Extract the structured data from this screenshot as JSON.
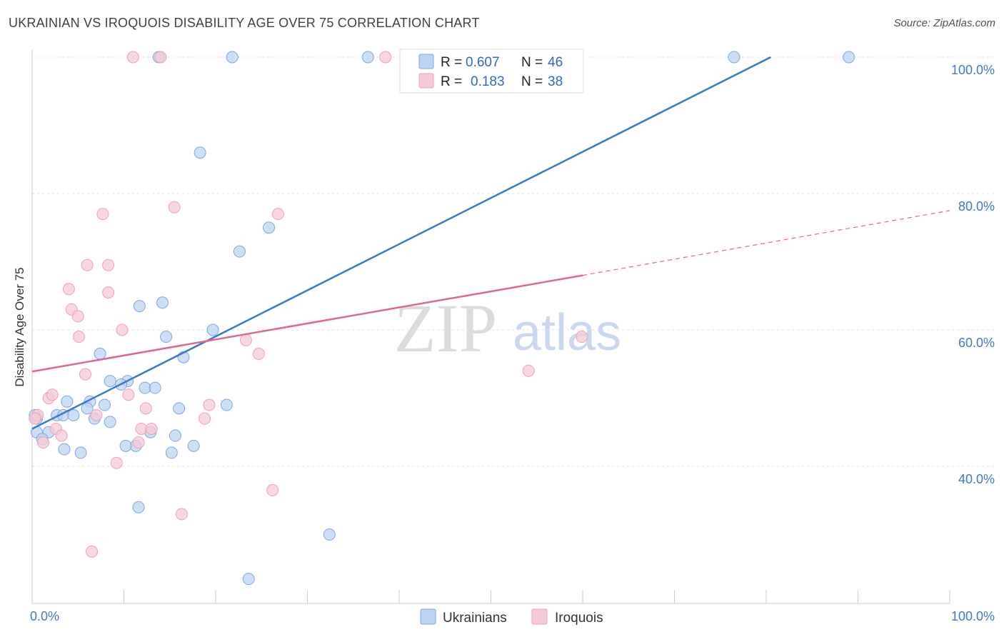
{
  "header": {
    "title": "UKRAINIAN VS IROQUOIS DISABILITY AGE OVER 75 CORRELATION CHART",
    "source": "Source: ZipAtlas.com"
  },
  "watermark": {
    "zip": "ZIP",
    "atlas": "atlas"
  },
  "chart_data": {
    "type": "scatter",
    "title": "UKRAINIAN VS IROQUOIS DISABILITY AGE OVER 75 CORRELATION CHART",
    "xlabel": "",
    "ylabel": "Disability Age Over 75",
    "xlim": [
      0,
      100
    ],
    "ylim": [
      20,
      102
    ],
    "x_tick_labels": [
      "0.0%",
      "100.0%"
    ],
    "y_ticks": [
      {
        "value": 40,
        "label": "40.0%"
      },
      {
        "value": 60,
        "label": "60.0%"
      },
      {
        "value": 80,
        "label": "80.0%"
      },
      {
        "value": 100,
        "label": "100.0%"
      }
    ],
    "legend": [
      {
        "name": "Ukrainians",
        "r_label": "R =",
        "r": "0.607",
        "n_label": "N =",
        "n": "46",
        "color": "#9dbfe9"
      },
      {
        "name": "Iroquois",
        "r_label": "R =",
        "r": "0.183",
        "n_label": "N =",
        "n": "38",
        "color": "#f2a9c0"
      }
    ],
    "series": [
      {
        "name": "Ukrainians",
        "fill": "#bcd4f2",
        "stroke": "#7ea7de",
        "trend": {
          "x0": 0,
          "y0": 45.5,
          "x1": 80.5,
          "y1": 100,
          "color": "#3a78cc",
          "dashed_to": null
        },
        "points": [
          [
            13.8,
            100
          ],
          [
            21.8,
            100
          ],
          [
            36.6,
            100
          ],
          [
            76.5,
            100
          ],
          [
            89.0,
            100
          ],
          [
            18.3,
            86
          ],
          [
            25.8,
            75
          ],
          [
            22.6,
            71.5
          ],
          [
            14.2,
            64
          ],
          [
            11.7,
            63.5
          ],
          [
            19.7,
            60
          ],
          [
            14.6,
            59
          ],
          [
            7.4,
            56.5
          ],
          [
            16.5,
            56
          ],
          [
            8.5,
            52.5
          ],
          [
            10.4,
            52.5
          ],
          [
            9.7,
            52
          ],
          [
            12.3,
            51.5
          ],
          [
            13.4,
            51.5
          ],
          [
            3.8,
            49.5
          ],
          [
            6.3,
            49.5
          ],
          [
            21.2,
            49
          ],
          [
            7.9,
            49
          ],
          [
            6.0,
            48.5
          ],
          [
            16.0,
            48.5
          ],
          [
            2.7,
            47.5
          ],
          [
            3.4,
            47.5
          ],
          [
            4.5,
            47.5
          ],
          [
            0.3,
            47.5
          ],
          [
            0.5,
            47
          ],
          [
            6.8,
            47
          ],
          [
            8.5,
            46.5
          ],
          [
            0.5,
            45
          ],
          [
            1.8,
            45
          ],
          [
            12.9,
            45
          ],
          [
            15.6,
            44.5
          ],
          [
            1.1,
            44
          ],
          [
            11.3,
            43
          ],
          [
            10.2,
            43
          ],
          [
            17.6,
            43
          ],
          [
            3.5,
            42.5
          ],
          [
            5.3,
            42
          ],
          [
            15.2,
            42
          ],
          [
            11.6,
            34
          ],
          [
            32.4,
            30
          ],
          [
            23.6,
            23.5
          ]
        ]
      },
      {
        "name": "Iroquois",
        "fill": "#f7c9d8",
        "stroke": "#ee9fba",
        "trend": {
          "x0": 0,
          "y0": 53.9,
          "x1": 60,
          "y1": 68.0,
          "x2": 100,
          "y2": 77.5,
          "color": "#e06690"
        },
        "points": [
          [
            11.0,
            100
          ],
          [
            14.0,
            100
          ],
          [
            38.5,
            100
          ],
          [
            15.5,
            78
          ],
          [
            26.8,
            77
          ],
          [
            7.7,
            77
          ],
          [
            6.0,
            69.5
          ],
          [
            8.3,
            69.5
          ],
          [
            4.0,
            66
          ],
          [
            8.3,
            65.5
          ],
          [
            4.3,
            63
          ],
          [
            5.0,
            62
          ],
          [
            9.8,
            60
          ],
          [
            5.1,
            59
          ],
          [
            23.3,
            58.5
          ],
          [
            59.9,
            59
          ],
          [
            24.7,
            56.5
          ],
          [
            5.8,
            53.5
          ],
          [
            54.1,
            54
          ],
          [
            1.8,
            50
          ],
          [
            2.2,
            50.5
          ],
          [
            10.5,
            50.5
          ],
          [
            19.3,
            49
          ],
          [
            12.4,
            48.5
          ],
          [
            0.6,
            47.5
          ],
          [
            0.3,
            47
          ],
          [
            7.0,
            47.5
          ],
          [
            18.8,
            47
          ],
          [
            2.6,
            45.5
          ],
          [
            11.9,
            45.5
          ],
          [
            13.0,
            45.5
          ],
          [
            3.2,
            44.5
          ],
          [
            1.2,
            43.5
          ],
          [
            11.6,
            43.5
          ],
          [
            9.2,
            40.5
          ],
          [
            26.2,
            36.5
          ],
          [
            16.3,
            33
          ],
          [
            6.5,
            27.5
          ]
        ]
      }
    ]
  }
}
